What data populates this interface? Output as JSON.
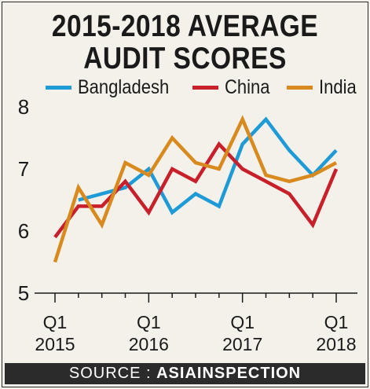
{
  "chart_data": {
    "type": "line",
    "title_line1": "2015-2018 AVERAGE",
    "title_line2": "AUDIT SCORES",
    "x": [
      0,
      1,
      2,
      3,
      4,
      5,
      6,
      7,
      8,
      9,
      10,
      11,
      12
    ],
    "x_tick_labels": [
      {
        "position": 0,
        "quarter": "Q1",
        "year": "2015"
      },
      {
        "position": 4,
        "quarter": "Q1",
        "year": "2016"
      },
      {
        "position": 8,
        "quarter": "Q1",
        "year": "2017"
      },
      {
        "position": 12,
        "quarter": "Q1",
        "year": "2018"
      }
    ],
    "y_ticks": [
      5,
      6,
      7,
      8
    ],
    "ylim": [
      5,
      8
    ],
    "grid": false,
    "legend_position": "top",
    "series": [
      {
        "name": "Bangladesh",
        "color": "#1e9ad6",
        "values": [
          null,
          6.5,
          6.6,
          6.7,
          7.0,
          6.3,
          6.6,
          6.4,
          7.4,
          7.8,
          7.3,
          6.9,
          7.3
        ]
      },
      {
        "name": "China",
        "color": "#c8202a",
        "values": [
          5.9,
          6.4,
          6.4,
          6.8,
          6.3,
          7.0,
          6.8,
          7.4,
          7.0,
          6.8,
          6.6,
          6.1,
          7.0
        ]
      },
      {
        "name": "India",
        "color": "#d98a1e",
        "values": [
          5.5,
          6.7,
          6.1,
          7.1,
          6.9,
          7.5,
          7.1,
          7.0,
          7.8,
          6.9,
          6.8,
          6.9,
          7.1
        ]
      }
    ]
  },
  "source": {
    "prefix": "SOURCE : ",
    "name": "ASIAINSPECTION"
  }
}
